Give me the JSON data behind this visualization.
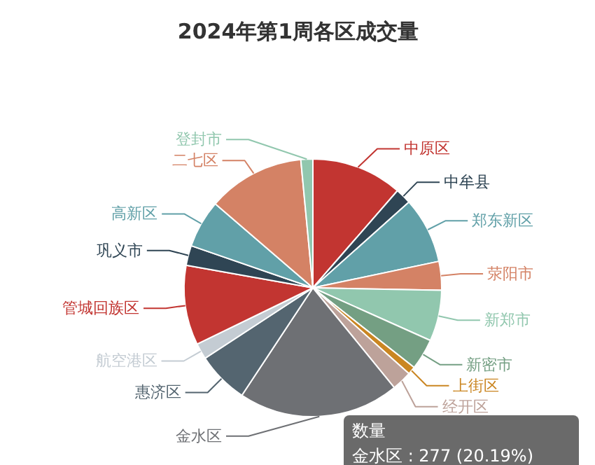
{
  "chart_data": {
    "type": "pie",
    "title": "2024年第1周各区成交量",
    "categories": [
      "中原区",
      "中牟县",
      "郑东新区",
      "荥阳市",
      "新郑市",
      "新密市",
      "上街区",
      "经开区",
      "金水区",
      "惠济区",
      "航空港区",
      "管城回族区",
      "巩义市",
      "高新区",
      "二七区",
      "登封市"
    ],
    "values": [
      11.4,
      2,
      8.3,
      3.6,
      6.4,
      3.9,
      1,
      2.5,
      20.19,
      6.5,
      2,
      10,
      2.5,
      6,
      12.2,
      1.5
    ],
    "colors": [
      "#c23531",
      "#2f4554",
      "#61a0a8",
      "#d48265",
      "#91c7ae",
      "#749f83",
      "#ca8622",
      "#bda29a",
      "#6e7074",
      "#546570",
      "#c4ccd3",
      "#c23531",
      "#2f4554",
      "#61a0a8",
      "#d48265",
      "#91c7ae"
    ],
    "annotations": [
      "数量",
      "金水区 : 277 (20.19%)"
    ]
  }
}
